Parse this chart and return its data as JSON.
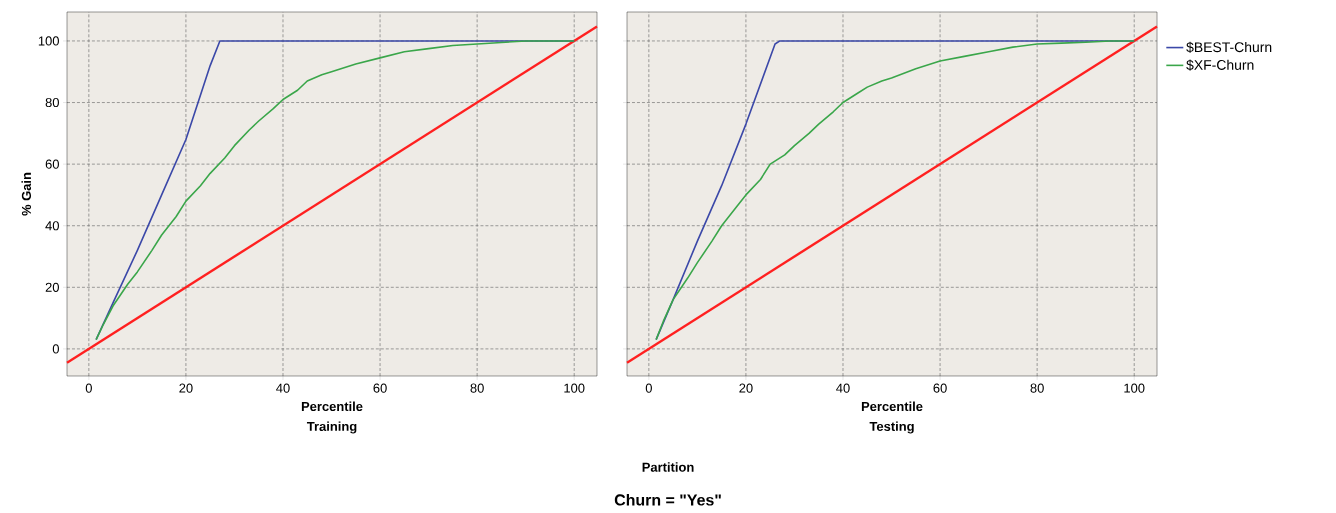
{
  "chart_data": [
    {
      "type": "line",
      "xlabel": "Percentile",
      "subtitle": "Training",
      "ylabel": "% Gain",
      "annotations": [
        "Partition",
        "Churn = \"Yes\""
      ],
      "xlim": [
        -4.5,
        104.7
      ],
      "ylim": [
        -8.8,
        109.4
      ],
      "xticks": [
        0,
        20,
        40,
        60,
        80,
        100
      ],
      "yticks": [
        0,
        20,
        40,
        60,
        80,
        100
      ],
      "grid": true,
      "legend": false,
      "line_style": "solid",
      "marker": "none",
      "series": [
        {
          "color": "#ff2020",
          "x": [
            -4.5,
            104.7
          ],
          "values": [
            -4.5,
            104.7
          ]
        },
        {
          "color": "#3b48a8",
          "x": [
            1.5,
            5,
            10,
            15,
            20,
            25,
            27,
            100
          ],
          "values": [
            3,
            15,
            32,
            50,
            68,
            92,
            100,
            100
          ]
        },
        {
          "color": "#3aa64a",
          "x": [
            1.5,
            3,
            5,
            8,
            10,
            13,
            15,
            18,
            20,
            23,
            25,
            28,
            30,
            33,
            35,
            38,
            40,
            43,
            45,
            48,
            50,
            55,
            60,
            65,
            70,
            75,
            80,
            85,
            90,
            95,
            100
          ],
          "values": [
            3,
            8,
            14,
            21,
            25,
            32,
            37,
            43,
            48,
            53,
            57,
            62,
            66,
            71,
            74,
            78,
            81,
            84,
            87,
            89,
            90,
            92.5,
            94.5,
            96.5,
            97.5,
            98.5,
            99,
            99.5,
            100,
            100,
            100
          ]
        }
      ]
    },
    {
      "type": "line",
      "xlabel": "Percentile",
      "subtitle": "Testing",
      "tick_labels": "x",
      "xlim": [
        -4.5,
        104.7
      ],
      "ylim": [
        -8.8,
        109.4
      ],
      "xticks": [
        0,
        20,
        40,
        60,
        80,
        100
      ],
      "yticks": [
        0,
        20,
        40,
        60,
        80,
        100
      ],
      "grid": true,
      "legend": "right",
      "line_style": "solid",
      "marker": "none",
      "series": [
        {
          "color": "#ff2020",
          "x": [
            -4.5,
            104.7
          ],
          "values": [
            -4.5,
            104.7
          ]
        },
        {
          "name": "$BEST-Churn",
          "color": "#3b48a8",
          "x": [
            1.5,
            5,
            10,
            15,
            20,
            26,
            27,
            100
          ],
          "values": [
            3,
            16,
            35,
            53,
            73,
            99,
            100,
            100
          ]
        },
        {
          "name": "$XF-Churn",
          "color": "#3aa64a",
          "x": [
            1.5,
            3,
            5,
            8,
            10,
            13,
            15,
            18,
            20,
            23,
            25,
            28,
            30,
            33,
            35,
            38,
            40,
            43,
            45,
            48,
            50,
            55,
            60,
            65,
            70,
            75,
            80,
            85,
            90,
            95,
            100
          ],
          "values": [
            3,
            9,
            16,
            23,
            28,
            35,
            40,
            46,
            50,
            55,
            60,
            63,
            66,
            70,
            73,
            77,
            80,
            83,
            85,
            87,
            88,
            91,
            93.5,
            95,
            96.5,
            98,
            99,
            99.3,
            99.6,
            100,
            100
          ]
        }
      ]
    }
  ]
}
